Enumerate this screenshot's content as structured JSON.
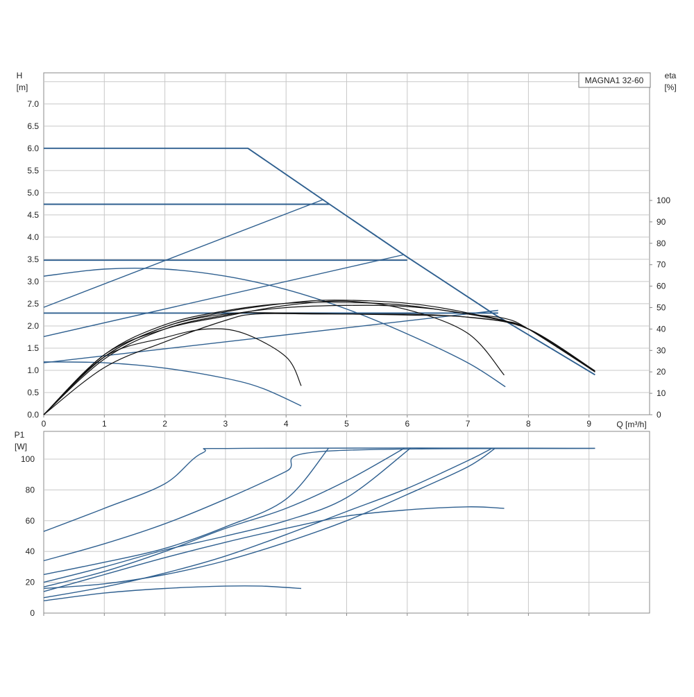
{
  "chart_data": [
    {
      "type": "line",
      "title": "MAGNA1 32-60",
      "ylabel": "H",
      "yunit": "[m]",
      "xlabel": "Q [m³/h]",
      "y2label": "eta",
      "y2unit": "[%]",
      "xlim": [
        0,
        10
      ],
      "ylim": [
        0,
        7.7
      ],
      "y2lim": [
        0,
        100
      ],
      "grid": true,
      "x_ticks": [
        "0",
        "1",
        "2",
        "3",
        "4",
        "5",
        "6",
        "7",
        "8",
        "9"
      ],
      "y_ticks": [
        "0.0",
        "0.5",
        "1.0",
        "1.5",
        "2.0",
        "2.5",
        "3.0",
        "3.5",
        "4.0",
        "4.5",
        "5.0",
        "5.5",
        "6.0",
        "6.5",
        "7.0"
      ],
      "y2_ticks": [
        "0",
        "10",
        "20",
        "30",
        "40",
        "50",
        "60",
        "70",
        "80",
        "90",
        "100"
      ],
      "head_curves": [
        {
          "style": "thick",
          "points": [
            [
              0,
              6.0
            ],
            [
              3.37,
              6.0
            ],
            [
              4.6,
              4.85
            ],
            [
              6.0,
              3.55
            ],
            [
              7.45,
              2.25
            ],
            [
              9.1,
              0.9
            ]
          ]
        },
        {
          "style": "thick",
          "points": [
            [
              0,
              4.74
            ],
            [
              4.72,
              4.74
            ]
          ]
        },
        {
          "style": "thick",
          "points": [
            [
              0,
              3.48
            ],
            [
              6.0,
              3.48
            ]
          ]
        },
        {
          "style": "thick",
          "points": [
            [
              0,
              2.29
            ],
            [
              7.5,
              2.29
            ]
          ]
        },
        {
          "style": "thin",
          "points": [
            [
              0,
              2.42
            ],
            [
              4.62,
              4.85
            ]
          ]
        },
        {
          "style": "thin",
          "points": [
            [
              0,
              1.76
            ],
            [
              5.93,
              3.6
            ]
          ]
        },
        {
          "style": "thin",
          "points": [
            [
              0,
              1.17
            ],
            [
              7.5,
              2.35
            ]
          ]
        },
        {
          "style": "thin",
          "points": [
            [
              0,
              3.12
            ],
            [
              1.0,
              3.28
            ],
            [
              2.0,
              3.28
            ],
            [
              3.0,
              3.12
            ],
            [
              4.0,
              2.82
            ],
            [
              5.0,
              2.38
            ],
            [
              6.0,
              1.82
            ],
            [
              7.0,
              1.17
            ],
            [
              7.62,
              0.63
            ]
          ]
        },
        {
          "style": "thin",
          "points": [
            [
              0,
              1.19
            ],
            [
              1.0,
              1.17
            ],
            [
              2.0,
              1.05
            ],
            [
              3.0,
              0.82
            ],
            [
              3.6,
              0.6
            ],
            [
              4.25,
              0.2
            ]
          ]
        }
      ],
      "eta_curves": [
        {
          "points": [
            [
              0,
              0
            ],
            [
              1,
              26
            ],
            [
              2,
              40
            ],
            [
              3,
              46.5
            ],
            [
              4,
              50
            ],
            [
              5,
              51
            ],
            [
              6,
              50.5
            ],
            [
              7,
              47
            ],
            [
              8,
              40
            ],
            [
              9.1,
              20.5
            ]
          ]
        },
        {
          "points": [
            [
              0,
              0
            ],
            [
              1,
              27
            ],
            [
              2,
              41
            ],
            [
              3,
              48
            ],
            [
              4,
              52
            ],
            [
              4.8,
              53.5
            ],
            [
              6,
              52
            ],
            [
              7,
              47.5
            ],
            [
              8,
              40
            ],
            [
              9.1,
              20
            ]
          ]
        },
        {
          "points": [
            [
              0,
              0
            ],
            [
              1,
              28
            ],
            [
              2,
              42
            ],
            [
              3,
              48.5
            ],
            [
              4,
              52
            ],
            [
              5,
              52.5
            ],
            [
              6,
              51
            ],
            [
              7,
              47
            ],
            [
              7.6,
              45
            ],
            [
              8,
              40
            ],
            [
              9.1,
              20
            ]
          ]
        },
        {
          "points": [
            [
              0,
              0
            ],
            [
              1,
              27
            ],
            [
              2,
              41
            ],
            [
              3,
              47
            ],
            [
              4,
              47.5
            ],
            [
              5,
              47
            ],
            [
              6,
              46.5
            ],
            [
              7,
              45.5
            ],
            [
              8,
              40
            ],
            [
              9.1,
              20
            ]
          ]
        },
        {
          "points": [
            [
              0,
              0
            ],
            [
              1,
              28
            ],
            [
              2,
              40
            ],
            [
              3,
              46
            ],
            [
              4,
              51
            ],
            [
              5,
              53
            ],
            [
              6,
              49
            ],
            [
              7,
              38
            ],
            [
              7.6,
              18.5
            ]
          ]
        },
        {
          "points": [
            [
              0,
              0
            ],
            [
              1,
              27
            ],
            [
              2,
              36
            ],
            [
              2.7,
              40
            ],
            [
              3.3,
              38
            ],
            [
              4,
              27
            ],
            [
              4.25,
              13.5
            ]
          ]
        },
        {
          "points": [
            [
              0,
              0
            ],
            [
              1,
              22
            ],
            [
              2,
              34
            ],
            [
              3,
              44
            ],
            [
              3.5,
              47
            ],
            [
              4.5,
              47
            ],
            [
              5.5,
              47
            ],
            [
              6.5,
              46.5
            ],
            [
              7.5,
              44
            ],
            [
              8,
              40
            ],
            [
              9.1,
              20
            ]
          ]
        }
      ]
    },
    {
      "type": "line",
      "ylabel": "P1",
      "yunit": "[W]",
      "xlim": [
        0,
        10
      ],
      "ylim": [
        0,
        118
      ],
      "grid": true,
      "y_ticks": [
        "0",
        "20",
        "40",
        "60",
        "80",
        "100"
      ],
      "power_curves": [
        {
          "points": [
            [
              0,
              53
            ],
            [
              1,
              68
            ],
            [
              2,
              84
            ],
            [
              2.62,
              104
            ],
            [
              3.3,
              107
            ],
            [
              9.1,
              107
            ]
          ]
        },
        {
          "points": [
            [
              0,
              34
            ],
            [
              1,
              45
            ],
            [
              2,
              58
            ],
            [
              3,
              74
            ],
            [
              4,
              92
            ],
            [
              4.6,
              105
            ],
            [
              9.1,
              107
            ]
          ]
        },
        {
          "points": [
            [
              0,
              25
            ],
            [
              1,
              33
            ],
            [
              2,
              42
            ],
            [
              3,
              56
            ],
            [
              4,
              74
            ],
            [
              4.7,
              107
            ]
          ]
        },
        {
          "points": [
            [
              0,
              17
            ],
            [
              1,
              27
            ],
            [
              2,
              40
            ],
            [
              3,
              55
            ],
            [
              4,
              68
            ],
            [
              5,
              86
            ],
            [
              5.95,
              107
            ]
          ]
        },
        {
          "points": [
            [
              0,
              20
            ],
            [
              1,
              30
            ],
            [
              2,
              41
            ],
            [
              3,
              50
            ],
            [
              4,
              60
            ],
            [
              5,
              75
            ],
            [
              6.05,
              107
            ]
          ]
        },
        {
          "points": [
            [
              0,
              16
            ],
            [
              1,
              19
            ],
            [
              2,
              25
            ],
            [
              3,
              34
            ],
            [
              4,
              46
            ],
            [
              5,
              60
            ],
            [
              6,
              77
            ],
            [
              7,
              95
            ],
            [
              7.45,
              107
            ]
          ]
        },
        {
          "points": [
            [
              0,
              10
            ],
            [
              1,
              17
            ],
            [
              2,
              26
            ],
            [
              3,
              37
            ],
            [
              4,
              51
            ],
            [
              5,
              66
            ],
            [
              6,
              81
            ],
            [
              7,
              99
            ],
            [
              7.4,
              107
            ]
          ]
        },
        {
          "points": [
            [
              0,
              14
            ],
            [
              1,
              25
            ],
            [
              2,
              36
            ],
            [
              3,
              46
            ],
            [
              4,
              55
            ],
            [
              5,
              63
            ],
            [
              6,
              67
            ],
            [
              7,
              69
            ],
            [
              7.6,
              68
            ]
          ]
        },
        {
          "points": [
            [
              0,
              8
            ],
            [
              1,
              13
            ],
            [
              2,
              16
            ],
            [
              3,
              17.5
            ],
            [
              3.6,
              17.5
            ],
            [
              4.25,
              16
            ]
          ]
        }
      ]
    }
  ]
}
